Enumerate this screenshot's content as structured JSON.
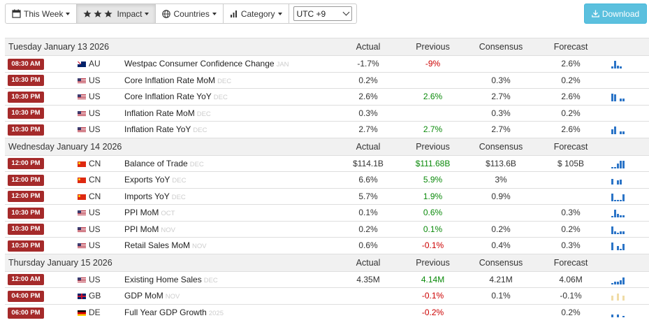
{
  "toolbar": {
    "week_label": "This Week",
    "impact_label": "Impact",
    "countries_label": "Countries",
    "category_label": "Category",
    "timezone": "UTC +9",
    "download_label": "Download"
  },
  "columns": {
    "actual": "Actual",
    "previous": "Previous",
    "consensus": "Consensus",
    "forecast": "Forecast"
  },
  "days": [
    {
      "date": "Tuesday January 13 2026",
      "events": [
        {
          "time": "08:30 AM",
          "flag": "au",
          "country": "AU",
          "name": "Westpac Consumer Confidence Change",
          "ref": "JAN",
          "actual": "-1.7%",
          "previous": "-9%",
          "previous_color": "red",
          "consensus": "",
          "forecast": "2.6%",
          "spark": [
            0.25,
            0.9,
            0.3,
            0.25
          ]
        },
        {
          "time": "10:30 PM",
          "flag": "us",
          "country": "US",
          "name": "Core Inflation Rate MoM",
          "ref": "DEC",
          "actual": "0.2%",
          "previous": "",
          "previous_color": "",
          "consensus": "0.3%",
          "forecast": "0.2%",
          "spark": []
        },
        {
          "time": "10:30 PM",
          "flag": "us",
          "country": "US",
          "name": "Core Inflation Rate YoY",
          "ref": "DEC",
          "actual": "2.6%",
          "previous": "2.6%",
          "previous_color": "green",
          "consensus": "2.7%",
          "forecast": "2.6%",
          "spark": [
            0.95,
            0.8,
            0.0,
            0.3,
            0.3
          ]
        },
        {
          "time": "10:30 PM",
          "flag": "us",
          "country": "US",
          "name": "Inflation Rate MoM",
          "ref": "DEC",
          "actual": "0.3%",
          "previous": "",
          "previous_color": "",
          "consensus": "0.3%",
          "forecast": "0.2%",
          "spark": []
        },
        {
          "time": "10:30 PM",
          "flag": "us",
          "country": "US",
          "name": "Inflation Rate YoY",
          "ref": "DEC",
          "actual": "2.7%",
          "previous": "2.7%",
          "previous_color": "green",
          "consensus": "2.7%",
          "forecast": "2.6%",
          "spark": [
            0.6,
            0.95,
            0.0,
            0.35,
            0.35
          ]
        }
      ]
    },
    {
      "date": "Wednesday January 14 2026",
      "events": [
        {
          "time": "12:00 PM",
          "flag": "cn",
          "country": "CN",
          "name": "Balance of Trade",
          "ref": "DEC",
          "actual": "$114.1B",
          "previous": "$111.68B",
          "previous_color": "green",
          "consensus": "$113.6B",
          "forecast": "$ 105B",
          "spark": [
            0.2,
            0.2,
            0.6,
            0.95,
            0.95
          ]
        },
        {
          "time": "12:00 PM",
          "flag": "cn",
          "country": "CN",
          "name": "Exports YoY",
          "ref": "DEC",
          "actual": "6.6%",
          "previous": "5.9%",
          "previous_color": "green",
          "consensus": "3%",
          "forecast": "",
          "spark": [
            0.7,
            0.0,
            0.5,
            0.55
          ]
        },
        {
          "time": "12:00 PM",
          "flag": "cn",
          "country": "CN",
          "name": "Imports YoY",
          "ref": "DEC",
          "actual": "5.7%",
          "previous": "1.9%",
          "previous_color": "green",
          "consensus": "0.9%",
          "forecast": "",
          "spark": [
            0.95,
            0.2,
            0.2,
            0.2,
            0.8
          ]
        },
        {
          "time": "10:30 PM",
          "flag": "us",
          "country": "US",
          "name": "PPI MoM",
          "ref": "OCT",
          "actual": "0.1%",
          "previous": "0.6%",
          "previous_color": "green",
          "consensus": "",
          "forecast": "0.3%",
          "spark": [
            0.2,
            0.95,
            0.4,
            0.25,
            0.25
          ]
        },
        {
          "time": "10:30 PM",
          "flag": "us",
          "country": "US",
          "name": "PPI MoM",
          "ref": "NOV",
          "actual": "0.2%",
          "previous": "0.1%",
          "previous_color": "green",
          "consensus": "0.2%",
          "forecast": "0.2%",
          "spark": [
            0.9,
            0.3,
            0.2,
            0.3,
            0.3
          ]
        },
        {
          "time": "10:30 PM",
          "flag": "us",
          "country": "US",
          "name": "Retail Sales MoM",
          "ref": "NOV",
          "actual": "0.6%",
          "previous": "-0.1%",
          "previous_color": "red",
          "consensus": "0.4%",
          "forecast": "0.3%",
          "spark": [
            0.95,
            0.0,
            0.5,
            0.2,
            0.75
          ]
        }
      ]
    },
    {
      "date": "Thursday January 15 2026",
      "events": [
        {
          "time": "12:00 AM",
          "flag": "us",
          "country": "US",
          "name": "Existing Home Sales",
          "ref": "DEC",
          "actual": "4.35M",
          "previous": "4.14M",
          "previous_color": "green",
          "consensus": "4.21M",
          "forecast": "4.06M",
          "spark": [
            0.2,
            0.3,
            0.35,
            0.5,
            0.85
          ]
        },
        {
          "time": "04:00 PM",
          "flag": "gb",
          "country": "GB",
          "name": "GDP MoM",
          "ref": "NOV",
          "actual": "",
          "previous": "-0.1%",
          "previous_color": "red",
          "consensus": "0.1%",
          "forecast": "-0.1%",
          "spark": [
            0.55,
            0.0,
            0.8,
            0.0,
            0.55
          ],
          "spark_pale": true
        },
        {
          "time": "06:00 PM",
          "flag": "de",
          "country": "DE",
          "name": "Full Year GDP Growth",
          "ref": "2025",
          "actual": "",
          "previous": "-0.2%",
          "previous_color": "red",
          "consensus": "",
          "forecast": "0.2%",
          "spark": [
            0.3,
            0.0,
            0.3,
            0.0,
            0.2
          ]
        }
      ]
    }
  ]
}
